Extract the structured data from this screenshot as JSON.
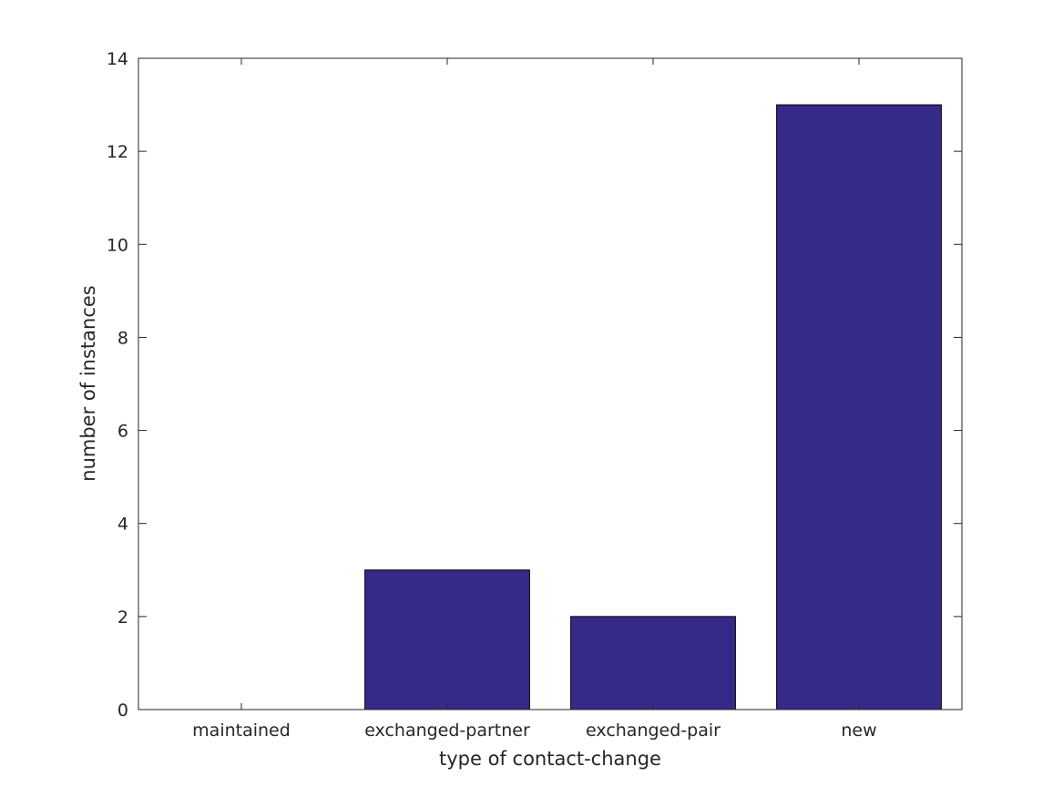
{
  "chart_data": {
    "type": "bar",
    "title": "",
    "xlabel": "type of contact-change",
    "ylabel": "number of instances",
    "categories": [
      "maintained",
      "exchanged-partner",
      "exchanged-pair",
      "new"
    ],
    "values": [
      0,
      3,
      2,
      13
    ],
    "ylim": [
      0,
      14
    ],
    "yticks": [
      0,
      2,
      4,
      6,
      8,
      10,
      12,
      14
    ],
    "grid": false,
    "legend": "none",
    "bar_color": "#352a87",
    "bar_edge_color": "#000000",
    "axis_color": "#262626"
  }
}
